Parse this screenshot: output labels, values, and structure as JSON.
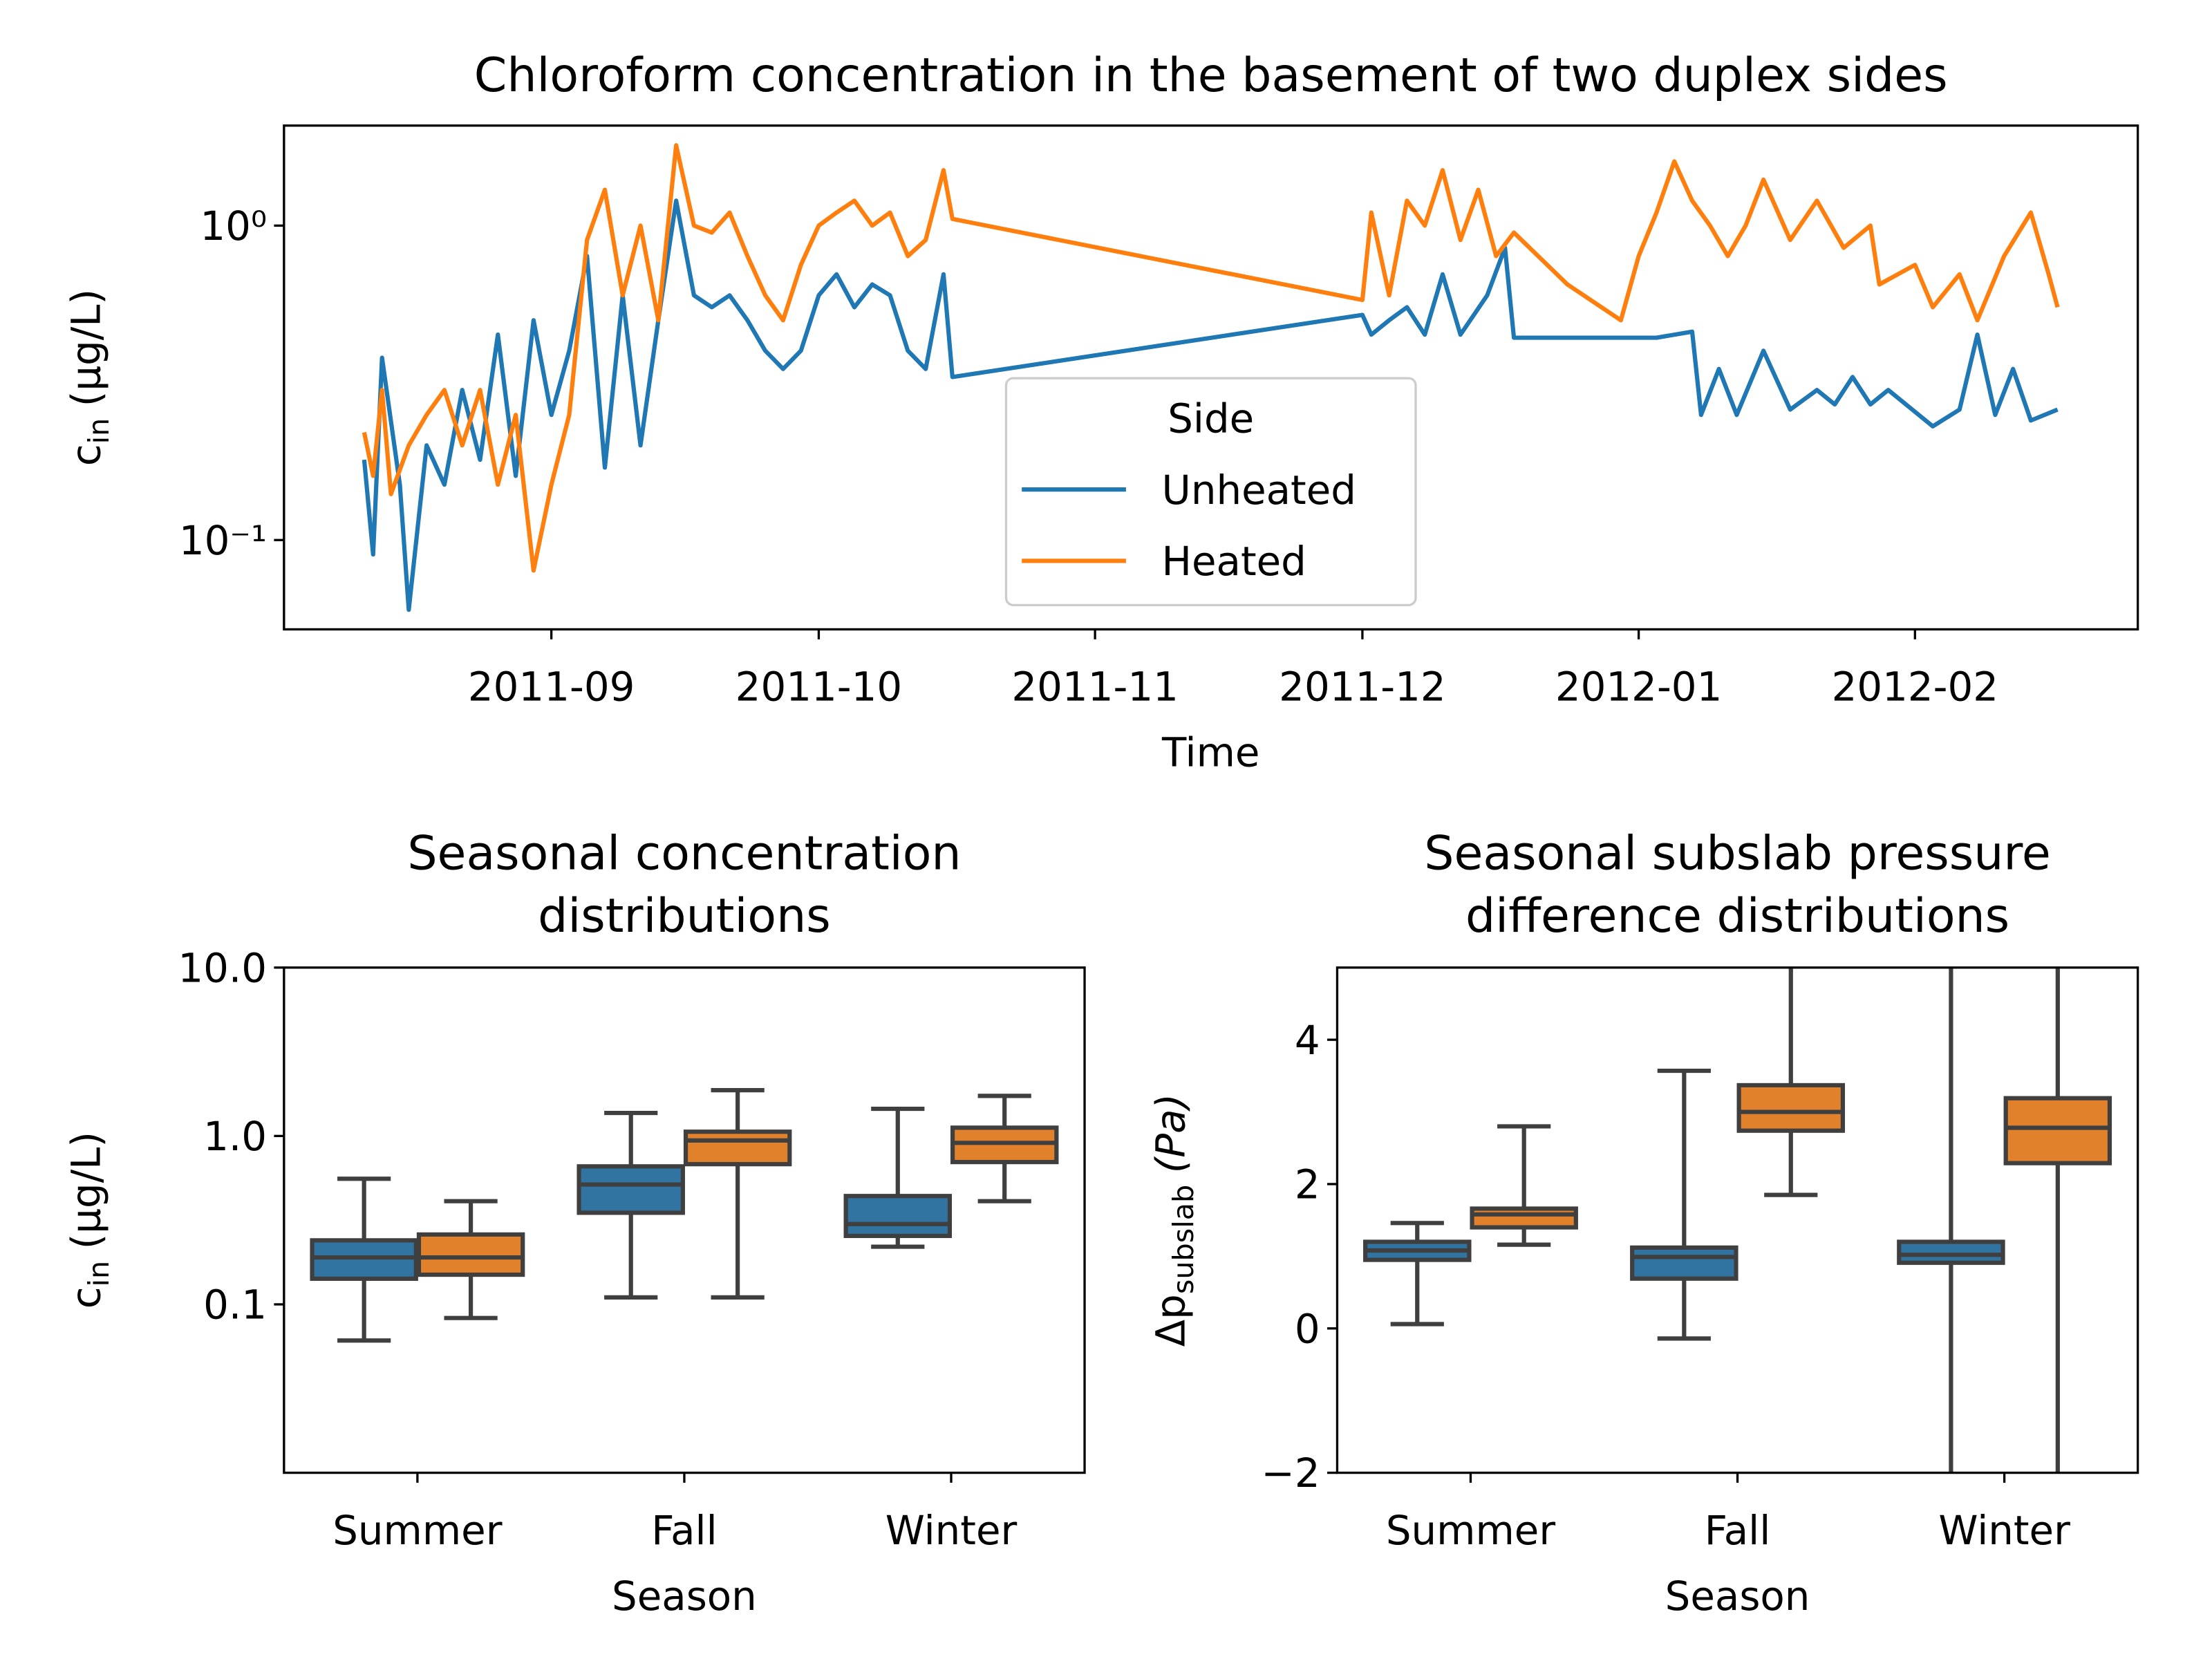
{
  "chart_data": [
    {
      "type": "line",
      "title": "Chloroform concentration in the basement of two duplex sides",
      "xlabel": "Time",
      "ylabel": "c",
      "ylabel_sub": "in",
      "ylabel_unit": "(μg/L)",
      "yscale": "log",
      "xlim": [
        "2011-08-02",
        "2012-02-26"
      ],
      "ylim": [
        0.052,
        2.08
      ],
      "xticks": [
        {
          "value": "2011-09-01",
          "label": "2011-09"
        },
        {
          "value": "2011-10-01",
          "label": "2011-10"
        },
        {
          "value": "2011-11-01",
          "label": "2011-11"
        },
        {
          "value": "2011-12-01",
          "label": "2011-12"
        },
        {
          "value": "2012-01-01",
          "label": "2012-01"
        },
        {
          "value": "2012-02-01",
          "label": "2012-02"
        }
      ],
      "yticks": [
        {
          "value": 0.1,
          "label": "10⁻¹"
        },
        {
          "value": 1,
          "label": "10⁰"
        }
      ],
      "legend_title": "Side",
      "legend_loc": "lower center",
      "series": [
        {
          "name": "Unheated",
          "color": "#1f77b4",
          "x": [
            "2011-08-11",
            "2011-08-12",
            "2011-08-13",
            "2011-08-15",
            "2011-08-16",
            "2011-08-18",
            "2011-08-20",
            "2011-08-22",
            "2011-08-24",
            "2011-08-26",
            "2011-08-28",
            "2011-08-30",
            "2011-09-01",
            "2011-09-03",
            "2011-09-05",
            "2011-09-07",
            "2011-09-09",
            "2011-09-11",
            "2011-09-13",
            "2011-09-15",
            "2011-09-17",
            "2011-09-19",
            "2011-09-21",
            "2011-09-23",
            "2011-09-25",
            "2011-09-27",
            "2011-09-29",
            "2011-10-01",
            "2011-10-03",
            "2011-10-05",
            "2011-10-07",
            "2011-10-09",
            "2011-10-11",
            "2011-10-13",
            "2011-10-15",
            "2011-10-16",
            "2011-12-01",
            "2011-12-02",
            "2011-12-04",
            "2011-12-06",
            "2011-12-08",
            "2011-12-10",
            "2011-12-12",
            "2011-12-15",
            "2011-12-17",
            "2011-12-18",
            "2011-12-20",
            "2011-12-28",
            "2012-01-03",
            "2012-01-07",
            "2012-01-08",
            "2012-01-10",
            "2012-01-12",
            "2012-01-15",
            "2012-01-18",
            "2012-01-21",
            "2012-01-23",
            "2012-01-25",
            "2012-01-27",
            "2012-01-29",
            "2012-02-03",
            "2012-02-06",
            "2012-02-08",
            "2012-02-10",
            "2012-02-12",
            "2012-02-14",
            "2012-02-17"
          ],
          "values": [
            0.18,
            0.09,
            0.38,
            0.15,
            0.06,
            0.2,
            0.15,
            0.3,
            0.18,
            0.45,
            0.16,
            0.5,
            0.25,
            0.4,
            0.8,
            0.17,
            0.6,
            0.2,
            0.5,
            1.2,
            0.6,
            0.55,
            0.6,
            0.5,
            0.4,
            0.35,
            0.4,
            0.6,
            0.7,
            0.55,
            0.65,
            0.6,
            0.4,
            0.35,
            0.7,
            0.33,
            0.52,
            0.45,
            0.5,
            0.55,
            0.45,
            0.7,
            0.45,
            0.6,
            0.85,
            0.44,
            0.44,
            0.44,
            0.44,
            0.46,
            0.25,
            0.35,
            0.25,
            0.4,
            0.26,
            0.3,
            0.27,
            0.33,
            0.27,
            0.3,
            0.23,
            0.26,
            0.45,
            0.25,
            0.35,
            0.24,
            0.26
          ]
        },
        {
          "name": "Heated",
          "color": "#ff7f0e",
          "x": [
            "2011-08-11",
            "2011-08-12",
            "2011-08-13",
            "2011-08-14",
            "2011-08-16",
            "2011-08-18",
            "2011-08-20",
            "2011-08-22",
            "2011-08-24",
            "2011-08-26",
            "2011-08-28",
            "2011-08-30",
            "2011-09-01",
            "2011-09-03",
            "2011-09-05",
            "2011-09-07",
            "2011-09-09",
            "2011-09-11",
            "2011-09-13",
            "2011-09-15",
            "2011-09-17",
            "2011-09-19",
            "2011-09-21",
            "2011-09-23",
            "2011-09-25",
            "2011-09-27",
            "2011-09-29",
            "2011-10-01",
            "2011-10-03",
            "2011-10-05",
            "2011-10-07",
            "2011-10-09",
            "2011-10-11",
            "2011-10-13",
            "2011-10-15",
            "2011-10-16",
            "2011-12-01",
            "2011-12-02",
            "2011-12-04",
            "2011-12-06",
            "2011-12-08",
            "2011-12-10",
            "2011-12-12",
            "2011-12-14",
            "2011-12-16",
            "2011-12-18",
            "2011-12-24",
            "2011-12-30",
            "2012-01-01",
            "2012-01-03",
            "2012-01-05",
            "2012-01-07",
            "2012-01-09",
            "2012-01-11",
            "2012-01-13",
            "2012-01-15",
            "2012-01-18",
            "2012-01-21",
            "2012-01-24",
            "2012-01-27",
            "2012-01-28",
            "2012-02-01",
            "2012-02-03",
            "2012-02-06",
            "2012-02-08",
            "2012-02-11",
            "2012-02-14",
            "2012-02-16",
            "2012-02-17"
          ],
          "values": [
            0.22,
            0.16,
            0.3,
            0.14,
            0.2,
            0.25,
            0.3,
            0.2,
            0.3,
            0.15,
            0.25,
            0.08,
            0.15,
            0.25,
            0.9,
            1.3,
            0.6,
            1.0,
            0.5,
            1.8,
            1.0,
            0.95,
            1.1,
            0.8,
            0.6,
            0.5,
            0.75,
            1.0,
            1.1,
            1.2,
            1.0,
            1.1,
            0.8,
            0.9,
            1.5,
            1.05,
            0.58,
            1.1,
            0.6,
            1.2,
            1.0,
            1.5,
            0.9,
            1.3,
            0.8,
            0.95,
            0.65,
            0.5,
            0.8,
            1.1,
            1.6,
            1.2,
            1.0,
            0.8,
            1.0,
            1.4,
            0.9,
            1.2,
            0.85,
            1.0,
            0.65,
            0.75,
            0.55,
            0.7,
            0.5,
            0.8,
            1.1,
            0.7,
            0.55
          ]
        }
      ]
    },
    {
      "type": "box",
      "title": [
        "Seasonal concentration",
        "distributions"
      ],
      "xlabel": "Season",
      "ylabel": "c",
      "ylabel_sub": "in",
      "ylabel_unit": "(μg/L)",
      "yscale": "log",
      "ylim": [
        0.01,
        10
      ],
      "yticks": [
        0.1,
        {
          "value": 1,
          "label": "1.0"
        },
        {
          "value": 10,
          "label": "10.0"
        }
      ],
      "categories": [
        "Summer",
        "Fall",
        "Winter"
      ],
      "series": [
        {
          "name": "Unheated",
          "color": "#3274a1",
          "whislo": [
            0.061,
            0.11,
            0.22
          ],
          "q1": [
            0.142,
            0.35,
            0.255
          ],
          "med": [
            0.19,
            0.515,
            0.3
          ],
          "q3": [
            0.24,
            0.66,
            0.44
          ],
          "whishi": [
            0.557,
            1.37,
            1.45
          ]
        },
        {
          "name": "Heated",
          "color": "#e1812c",
          "whislo": [
            0.083,
            0.11,
            0.41
          ],
          "q1": [
            0.15,
            0.68,
            0.7
          ],
          "med": [
            0.19,
            0.94,
            0.91
          ],
          "q3": [
            0.26,
            1.06,
            1.12
          ],
          "whishi": [
            0.41,
            1.87,
            1.73
          ]
        }
      ]
    },
    {
      "type": "box",
      "title": [
        "Seasonal subslab pressure",
        "difference distributions"
      ],
      "xlabel": "Season",
      "ylabel": "Δp",
      "ylabel_sub": "subslab",
      "ylabel_unit": "(Pa)",
      "yscale": "linear",
      "ylim": [
        -2,
        5
      ],
      "yticks": [
        {
          "value": -2,
          "label": "−2"
        },
        0,
        2,
        4
      ],
      "categories": [
        "Summer",
        "Fall",
        "Winter"
      ],
      "series": [
        {
          "name": "Unheated",
          "color": "#3274a1",
          "whislo": [
            0.06,
            -0.14,
            -4
          ],
          "q1": [
            0.95,
            0.69,
            0.91
          ],
          "med": [
            1.08,
            0.99,
            1.02
          ],
          "q3": [
            1.2,
            1.12,
            1.2
          ],
          "whishi": [
            1.46,
            3.57,
            8
          ]
        },
        {
          "name": "Heated",
          "color": "#e1812c",
          "whislo": [
            1.16,
            1.85,
            -4
          ],
          "q1": [
            1.4,
            2.74,
            2.29
          ],
          "med": [
            1.58,
            3.0,
            2.78
          ],
          "q3": [
            1.66,
            3.37,
            3.19
          ],
          "whishi": [
            2.8,
            6.5,
            8
          ]
        }
      ]
    }
  ]
}
